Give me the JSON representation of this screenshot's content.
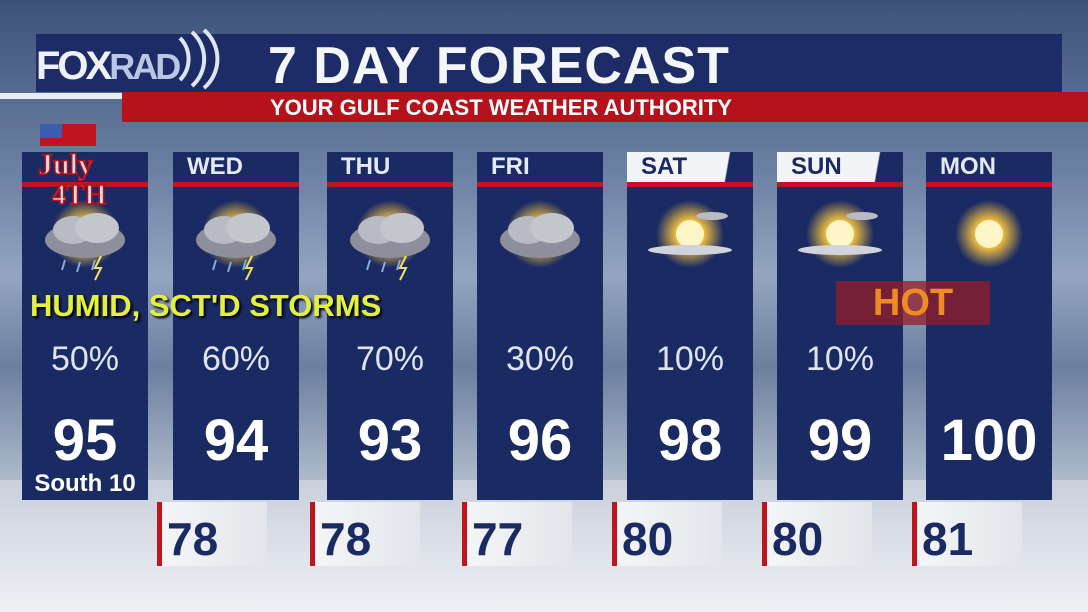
{
  "header": {
    "logo": "FOXRAD",
    "title": "7 DAY FORECAST",
    "subtitle": "YOUR GULF COAST WEATHER AUTHORITY"
  },
  "banner": "HUMID, SCT'D STORMS",
  "hot_label": "HOT",
  "july_logo": "July 4th",
  "days": [
    {
      "day": "",
      "icon": "thunderstorm-icon",
      "precip": "50%",
      "high": "95",
      "wind": "South 10"
    },
    {
      "day": "WED",
      "icon": "thunderstorm-icon",
      "precip": "60%",
      "high": "94"
    },
    {
      "day": "THU",
      "icon": "thunderstorm-icon",
      "precip": "70%",
      "high": "93"
    },
    {
      "day": "FRI",
      "icon": "partly-cloudy-storm-icon",
      "precip": "30%",
      "high": "96"
    },
    {
      "day": "SAT",
      "icon": "mostly-sunny-icon",
      "precip": "10%",
      "high": "98"
    },
    {
      "day": "SUN",
      "icon": "mostly-sunny-icon",
      "precip": "10%",
      "high": "99"
    },
    {
      "day": "MON",
      "icon": "sunny-icon",
      "precip": "",
      "high": "100"
    }
  ],
  "lows": [
    "78",
    "78",
    "77",
    "80",
    "80",
    "81"
  ],
  "colors": {
    "navy": "#1a2a63",
    "red": "#c0141e",
    "banner": "#e4f040",
    "hot": "#f08a22"
  }
}
